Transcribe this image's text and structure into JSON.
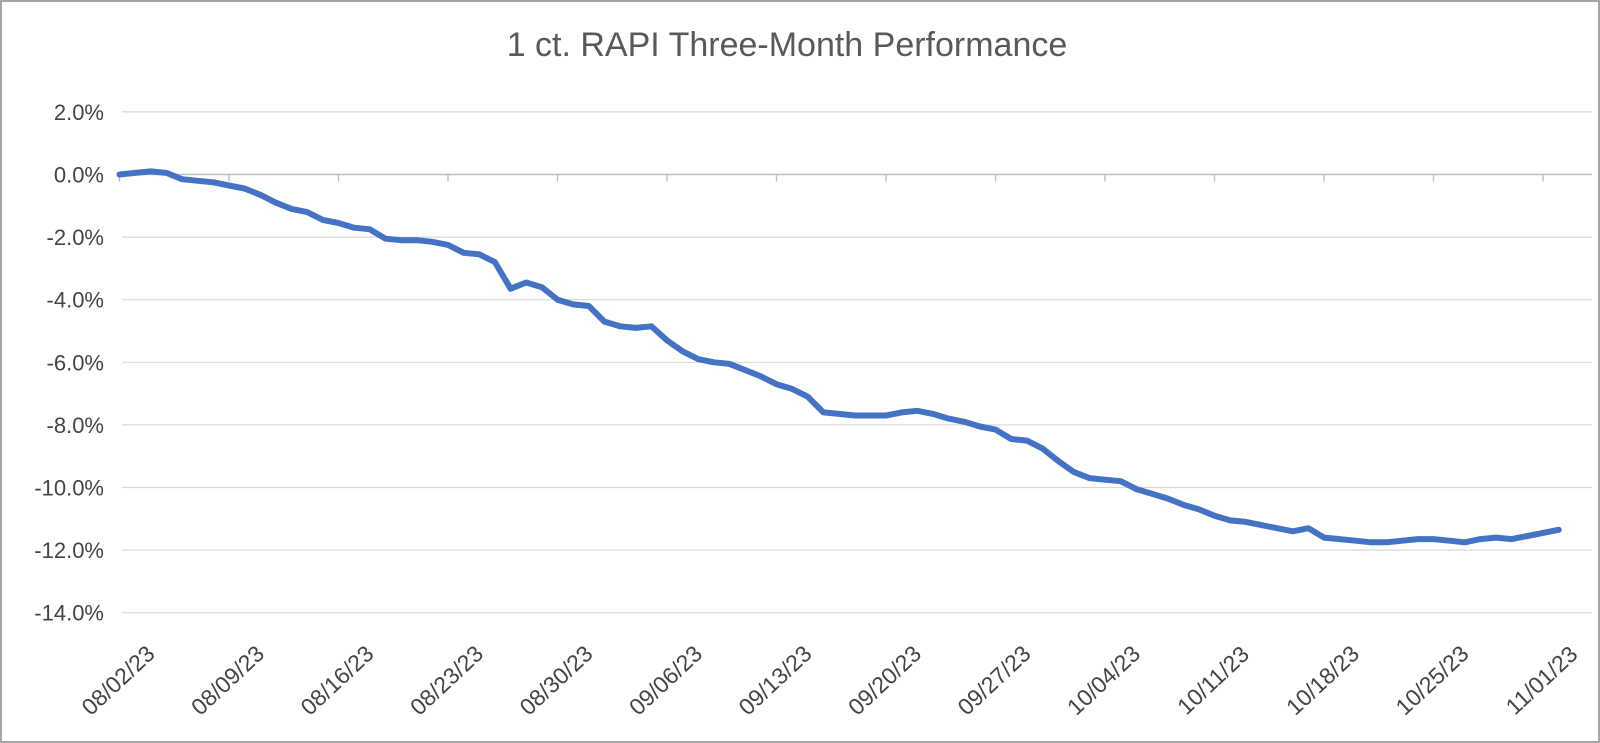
{
  "title": "1 ct. RAPI Three-Month Performance",
  "colors": {
    "line": "#4472C4",
    "gridline": "#D9D9D9",
    "axis_line": "#BFBFBF",
    "title_text": "#595959",
    "tick_label_text": "#444444",
    "frame_border": "#A6A6A6",
    "background": "#FFFFFF"
  },
  "chart_data": {
    "type": "line",
    "title": "1 ct. RAPI Three-Month Performance",
    "xlabel": "",
    "ylabel": "",
    "ylim": [
      -14,
      2
    ],
    "ytick_step_pct": 2,
    "grid": "horizontal",
    "legend": "none",
    "yticks": [
      {
        "value": 2,
        "label": "2.0%"
      },
      {
        "value": 0,
        "label": "0.0%"
      },
      {
        "value": -2,
        "label": "-2.0%"
      },
      {
        "value": -4,
        "label": "-4.0%"
      },
      {
        "value": -6,
        "label": "-6.0%"
      },
      {
        "value": -8,
        "label": "-8.0%"
      },
      {
        "value": -10,
        "label": "-10.0%"
      },
      {
        "value": -12,
        "label": "-12.0%"
      },
      {
        "value": -14,
        "label": "-14.0%"
      }
    ],
    "xticks": [
      {
        "day": 0,
        "label": "08/02/23"
      },
      {
        "day": 7,
        "label": "08/09/23"
      },
      {
        "day": 14,
        "label": "08/16/23"
      },
      {
        "day": 21,
        "label": "08/23/23"
      },
      {
        "day": 28,
        "label": "08/30/23"
      },
      {
        "day": 35,
        "label": "09/06/23"
      },
      {
        "day": 42,
        "label": "09/13/23"
      },
      {
        "day": 49,
        "label": "09/20/23"
      },
      {
        "day": 56,
        "label": "09/27/23"
      },
      {
        "day": 63,
        "label": "10/04/23"
      },
      {
        "day": 70,
        "label": "10/11/23"
      },
      {
        "day": 77,
        "label": "10/18/23"
      },
      {
        "day": 84,
        "label": "10/25/23"
      },
      {
        "day": 91,
        "label": "11/01/23"
      }
    ],
    "x": [
      "08/02/23",
      "08/03/23",
      "08/04/23",
      "08/05/23",
      "08/06/23",
      "08/07/23",
      "08/08/23",
      "08/09/23",
      "08/10/23",
      "08/11/23",
      "08/12/23",
      "08/13/23",
      "08/14/23",
      "08/15/23",
      "08/16/23",
      "08/17/23",
      "08/18/23",
      "08/19/23",
      "08/20/23",
      "08/21/23",
      "08/22/23",
      "08/23/23",
      "08/24/23",
      "08/25/23",
      "08/26/23",
      "08/27/23",
      "08/28/23",
      "08/29/23",
      "08/30/23",
      "08/31/23",
      "09/01/23",
      "09/02/23",
      "09/03/23",
      "09/04/23",
      "09/05/23",
      "09/06/23",
      "09/07/23",
      "09/08/23",
      "09/09/23",
      "09/10/23",
      "09/11/23",
      "09/12/23",
      "09/13/23",
      "09/14/23",
      "09/15/23",
      "09/16/23",
      "09/17/23",
      "09/18/23",
      "09/19/23",
      "09/20/23",
      "09/21/23",
      "09/22/23",
      "09/23/23",
      "09/24/23",
      "09/25/23",
      "09/26/23",
      "09/27/23",
      "09/28/23",
      "09/29/23",
      "09/30/23",
      "10/01/23",
      "10/02/23",
      "10/03/23",
      "10/04/23",
      "10/05/23",
      "10/06/23",
      "10/07/23",
      "10/08/23",
      "10/09/23",
      "10/10/23",
      "10/11/23",
      "10/12/23",
      "10/13/23",
      "10/14/23",
      "10/15/23",
      "10/16/23",
      "10/17/23",
      "10/18/23",
      "10/19/23",
      "10/20/23",
      "10/21/23",
      "10/22/23",
      "10/23/23",
      "10/24/23",
      "10/25/23",
      "10/26/23",
      "10/27/23",
      "10/28/23",
      "10/29/23",
      "10/30/23",
      "10/31/23",
      "11/01/23",
      "11/02/23"
    ],
    "values_pct": [
      0.0,
      0.05,
      0.1,
      0.05,
      -0.15,
      -0.2,
      -0.25,
      -0.35,
      -0.45,
      -0.65,
      -0.9,
      -1.1,
      -1.2,
      -1.45,
      -1.55,
      -1.7,
      -1.75,
      -2.05,
      -2.1,
      -2.1,
      -2.15,
      -2.25,
      -2.5,
      -2.55,
      -2.8,
      -3.65,
      -3.45,
      -3.6,
      -4.0,
      -4.15,
      -4.2,
      -4.7,
      -4.85,
      -4.9,
      -4.85,
      -5.3,
      -5.65,
      -5.9,
      -6.0,
      -6.05,
      -6.25,
      -6.45,
      -6.7,
      -6.85,
      -7.1,
      -7.6,
      -7.65,
      -7.7,
      -7.7,
      -7.7,
      -7.6,
      -7.55,
      -7.65,
      -7.8,
      -7.9,
      -8.05,
      -8.15,
      -8.45,
      -8.5,
      -8.75,
      -9.15,
      -9.5,
      -9.7,
      -9.75,
      -9.8,
      -10.05,
      -10.2,
      -10.35,
      -10.55,
      -10.7,
      -10.9,
      -11.05,
      -11.1,
      -11.2,
      -11.3,
      -11.4,
      -11.3,
      -11.6,
      -11.65,
      -11.7,
      -11.75,
      -11.75,
      -11.7,
      -11.65,
      -11.65,
      -11.7,
      -11.75,
      -11.65,
      -11.6,
      -11.65,
      -11.55,
      -11.45,
      -11.35
    ]
  }
}
